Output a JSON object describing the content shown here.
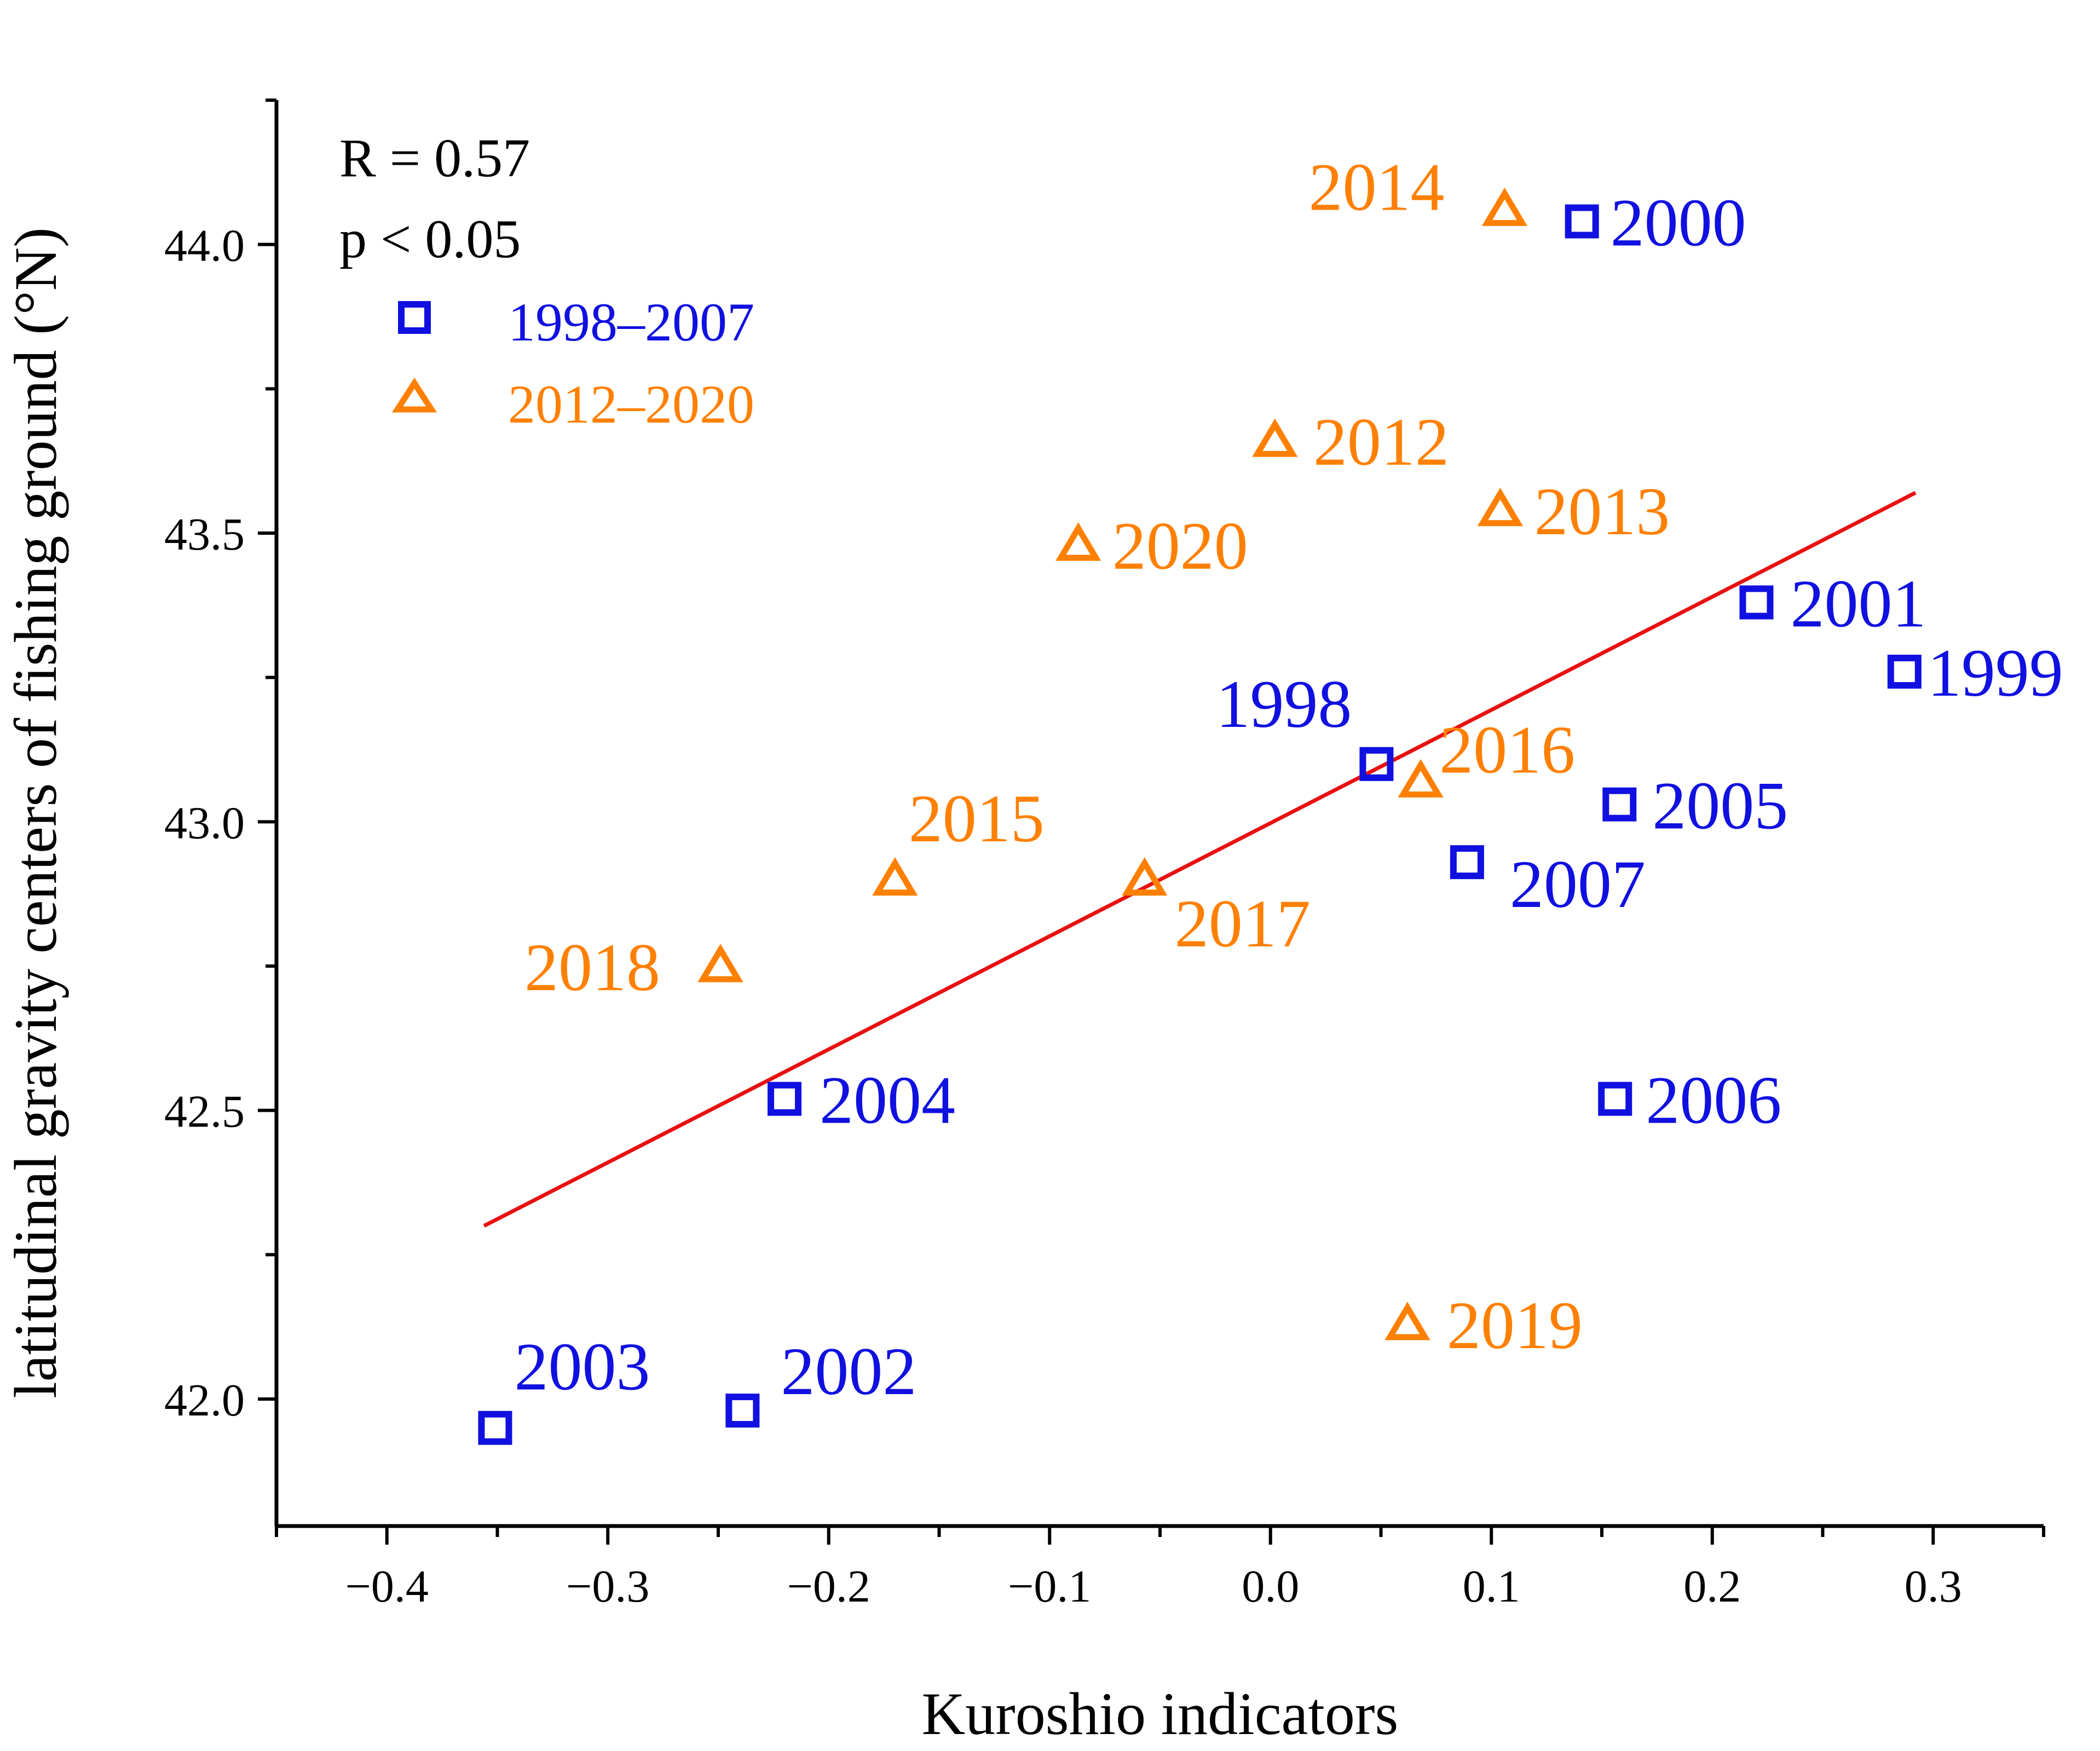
{
  "chart_data": {
    "type": "scatter",
    "xlabel": "Kuroshio indicators",
    "ylabel": "latitudinal gravity centers of fishing ground (°N)",
    "xlim": [
      -0.45,
      0.35
    ],
    "ylim": [
      41.78,
      44.25
    ],
    "x_ticks": [
      "−0.4",
      "−0.3",
      "−0.2",
      "−0.1",
      "0.0",
      "0.1",
      "0.2",
      "0.3"
    ],
    "x_tick_values": [
      -0.4,
      -0.3,
      -0.2,
      -0.1,
      0.0,
      0.1,
      0.2,
      0.3
    ],
    "y_ticks": [
      "42.0",
      "42.5",
      "43.0",
      "43.5",
      "44.0"
    ],
    "y_tick_values": [
      42.0,
      42.5,
      43.0,
      43.5,
      44.0
    ],
    "annotations": {
      "r": "R = 0.57",
      "p": "p < 0.05"
    },
    "legend": [
      {
        "name": "1998–2007",
        "marker": "square",
        "color": "#1010e0"
      },
      {
        "name": "2012–2020",
        "marker": "triangle",
        "color": "#ff8000"
      }
    ],
    "fit_line": {
      "color": "#e81010",
      "x": [
        -0.356,
        0.292
      ],
      "y": [
        42.3,
        43.57
      ]
    },
    "series": [
      {
        "name": "1998–2007",
        "marker": "square",
        "color": "#1010e0",
        "points": [
          {
            "label": "1998",
            "x": 0.048,
            "y": 43.1
          },
          {
            "label": "1999",
            "x": 0.287,
            "y": 43.26
          },
          {
            "label": "2000",
            "x": 0.141,
            "y": 44.04
          },
          {
            "label": "2001",
            "x": 0.22,
            "y": 43.38
          },
          {
            "label": "2002",
            "x": -0.239,
            "y": 41.98
          },
          {
            "label": "2003",
            "x": -0.351,
            "y": 41.95
          },
          {
            "label": "2004",
            "x": -0.22,
            "y": 42.52
          },
          {
            "label": "2005",
            "x": 0.158,
            "y": 43.03
          },
          {
            "label": "2006",
            "x": 0.156,
            "y": 42.52
          },
          {
            "label": "2007",
            "x": 0.089,
            "y": 42.93
          }
        ]
      },
      {
        "name": "2012–2020",
        "marker": "triangle",
        "color": "#ff8000",
        "points": [
          {
            "label": "2012",
            "x": 0.002,
            "y": 43.66
          },
          {
            "label": "2013",
            "x": 0.104,
            "y": 43.54
          },
          {
            "label": "2014",
            "x": 0.106,
            "y": 44.06
          },
          {
            "label": "2015",
            "x": -0.17,
            "y": 42.9
          },
          {
            "label": "2016",
            "x": 0.068,
            "y": 43.07
          },
          {
            "label": "2017",
            "x": -0.057,
            "y": 42.9
          },
          {
            "label": "2018",
            "x": -0.249,
            "y": 42.75
          },
          {
            "label": "2019",
            "x": 0.062,
            "y": 42.13
          },
          {
            "label": "2020",
            "x": -0.087,
            "y": 43.48
          }
        ]
      }
    ]
  }
}
